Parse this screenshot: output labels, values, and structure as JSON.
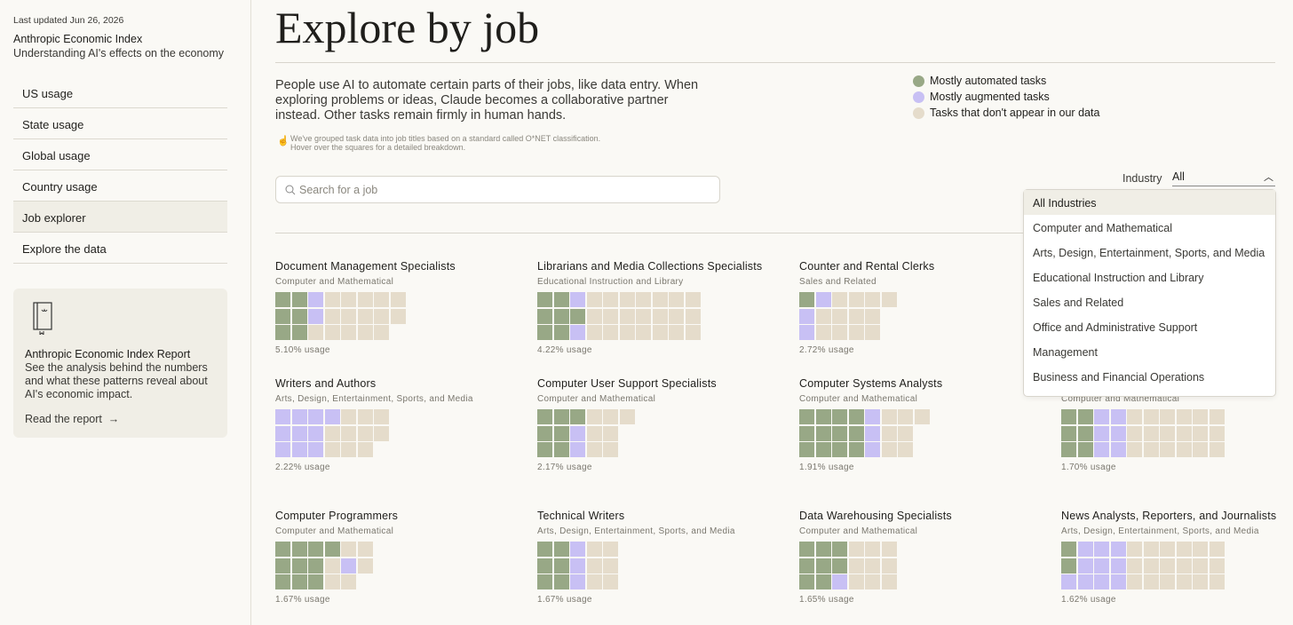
{
  "sidebar": {
    "updated": "Last updated Jun 26, 2026",
    "title": "Anthropic Economic Index",
    "subtitle": "Understanding AI's effects on the economy",
    "nav": [
      "US usage",
      "State usage",
      "Global usage",
      "Country usage",
      "Job explorer",
      "Explore the data"
    ],
    "report": {
      "title": "Anthropic Economic Index Report",
      "text": "See the analysis behind the numbers and what these patterns reveal about AI's economic impact.",
      "link": "Read the report"
    }
  },
  "main": {
    "heading": "Explore by job",
    "intro": "People use AI to automate certain parts of their jobs, like data entry. When exploring problems or ideas, Claude becomes a collaborative partner instead. Other tasks remain firmly in human hands.",
    "note": "We've grouped task data into job titles based on a standard called O*NET classification. Hover over the squares for a detailed breakdown.",
    "legend": [
      {
        "label": "Mostly automated tasks",
        "color": "#98a886"
      },
      {
        "label": "Mostly augmented tasks",
        "color": "#c8c0f4"
      },
      {
        "label": "Tasks that don't appear in our data",
        "color": "#e5dccb"
      }
    ],
    "search_placeholder": "Search for a job",
    "industry_label": "Industry",
    "industry_value": "All",
    "dropdown": [
      "All Industries",
      "Computer and Mathematical",
      "Arts, Design, Entertainment, Sports, and Media",
      "Educational Instruction and Library",
      "Sales and Related",
      "Office and Administrative Support",
      "Management",
      "Business and Financial Operations"
    ],
    "jobs": [
      {
        "title": "Document Management Specialists",
        "industry": "Computer and Mathematical",
        "usage": "5.10% usage",
        "rows": [
          "00122222",
          "00122222",
          "0022222"
        ]
      },
      {
        "title": "Librarians and Media Collections Specialists",
        "industry": "Educational Instruction and Library",
        "usage": "4.22% usage",
        "rows": [
          "0012222222",
          "0002222222",
          "0012222222"
        ]
      },
      {
        "title": "Counter and Rental Clerks",
        "industry": "Sales and Related",
        "usage": "2.72% usage",
        "rows": [
          "012222",
          "12222",
          "12222"
        ]
      },
      null,
      {
        "title": "Writers and Authors",
        "industry": "Arts, Design, Entertainment, Sports, and Media",
        "usage": "2.22% usage",
        "rows": [
          "1111222",
          "1112222",
          "111222"
        ]
      },
      {
        "title": "Computer User Support Specialists",
        "industry": "Computer and Mathematical",
        "usage": "2.17% usage",
        "rows": [
          "000222",
          "00122",
          "00122"
        ]
      },
      {
        "title": "Computer Systems Analysts",
        "industry": "Computer and Mathematical",
        "usage": "1.91% usage",
        "rows": [
          "00001222",
          "0000122",
          "0000122"
        ]
      },
      {
        "industry": "Computer and Mathematical",
        "usage": "1.70% usage",
        "rows": [
          "0011222222",
          "0011222222",
          "0011222222"
        ]
      },
      {
        "title": "Computer Programmers",
        "industry": "Computer and Mathematical",
        "usage": "1.67% usage",
        "rows": [
          "000022",
          "000212",
          "00022"
        ]
      },
      {
        "title": "Technical Writers",
        "industry": "Arts, Design, Entertainment, Sports, and Media",
        "usage": "1.67% usage",
        "rows": [
          "00122",
          "00122",
          "00122"
        ]
      },
      {
        "title": "Data Warehousing Specialists",
        "industry": "Computer and Mathematical",
        "usage": "1.65% usage",
        "rows": [
          "000222",
          "000222",
          "001222"
        ]
      },
      {
        "title": "News Analysts, Reporters, and Journalists",
        "industry": "Arts, Design, Entertainment, Sports, and Media",
        "usage": "1.62% usage",
        "rows": [
          "0111222222",
          "0111222222",
          "1111222222"
        ]
      }
    ]
  }
}
